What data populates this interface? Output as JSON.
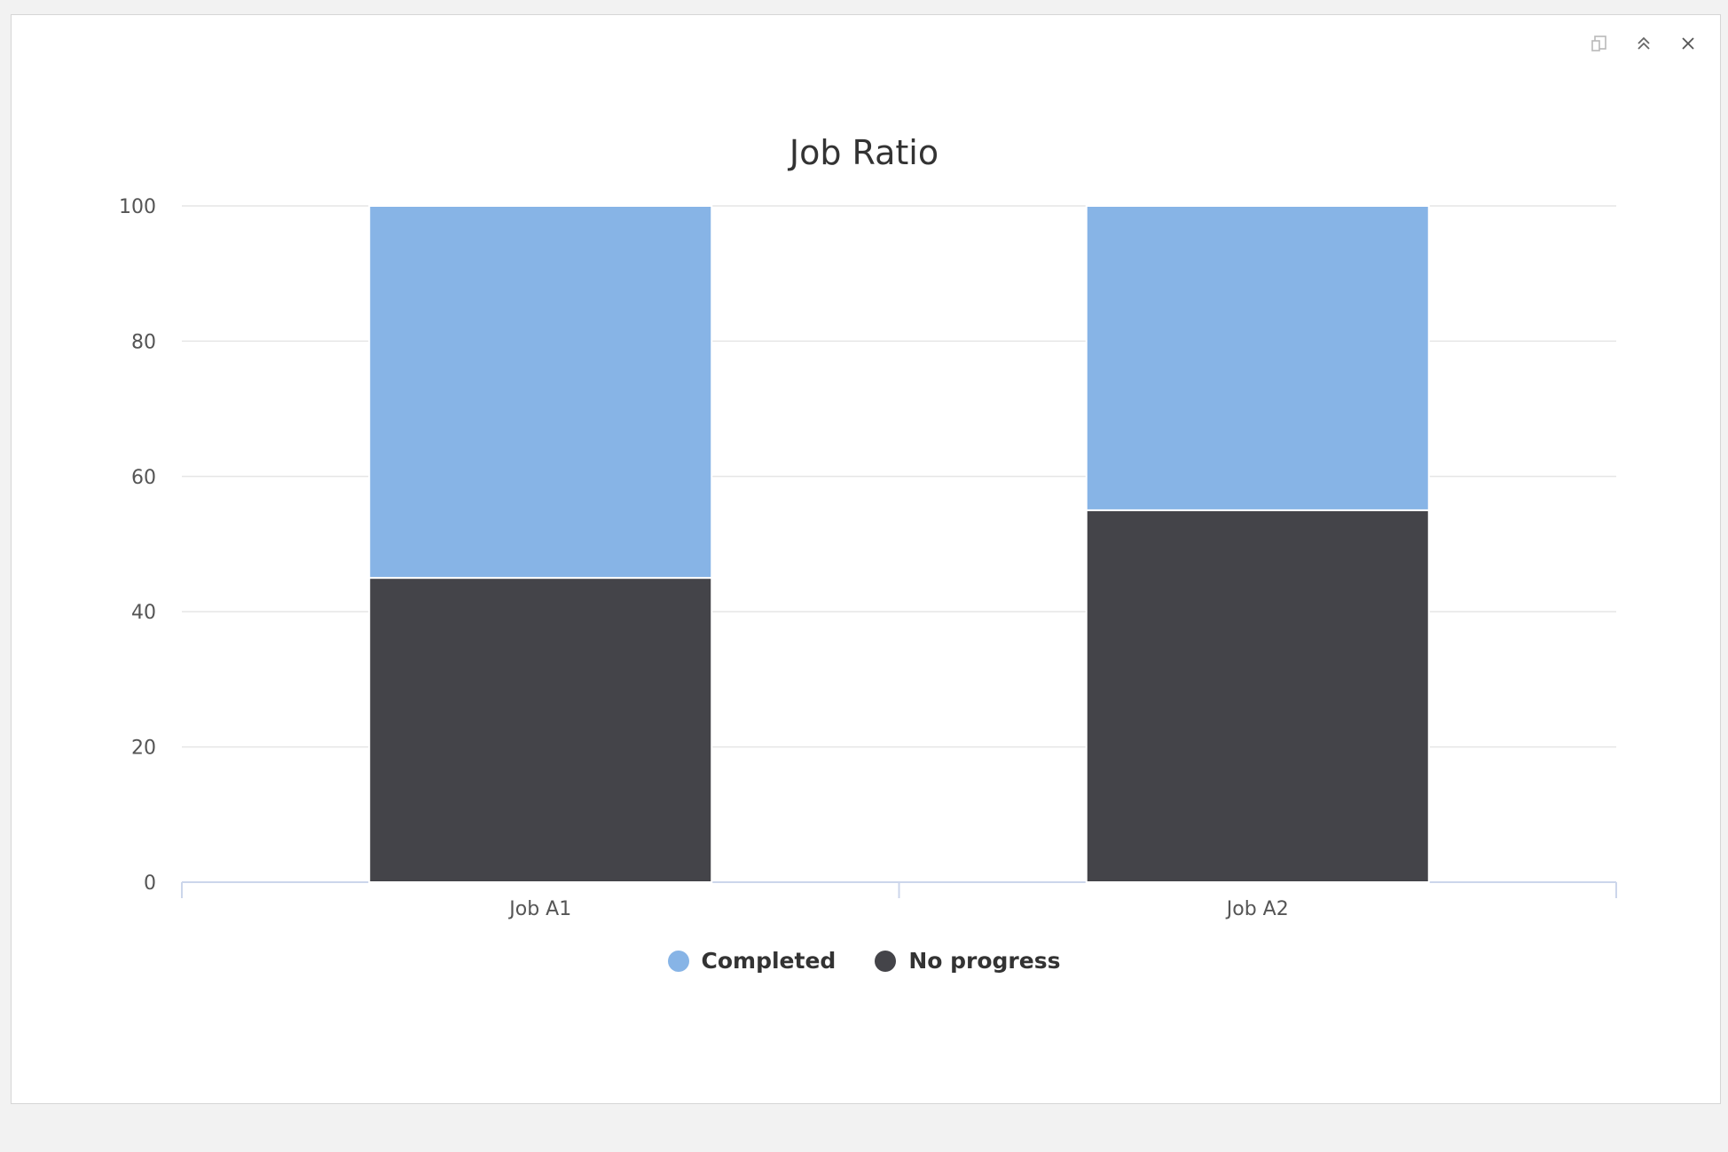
{
  "toolbar": {
    "icons": [
      "export-icon",
      "collapse-icon",
      "close-icon"
    ]
  },
  "chart_data": {
    "type": "bar",
    "stacked": true,
    "title": "Job Ratio",
    "categories": [
      "Job A1",
      "Job A2"
    ],
    "series": [
      {
        "name": "Completed",
        "color": "#87b4e6",
        "values": [
          55,
          45
        ]
      },
      {
        "name": "No progress",
        "color": "#444449",
        "values": [
          45,
          55
        ]
      }
    ],
    "ylim": [
      0,
      100
    ],
    "yticks": [
      0,
      20,
      40,
      60,
      80,
      100
    ],
    "grid": true,
    "legend_position": "bottom-center"
  }
}
